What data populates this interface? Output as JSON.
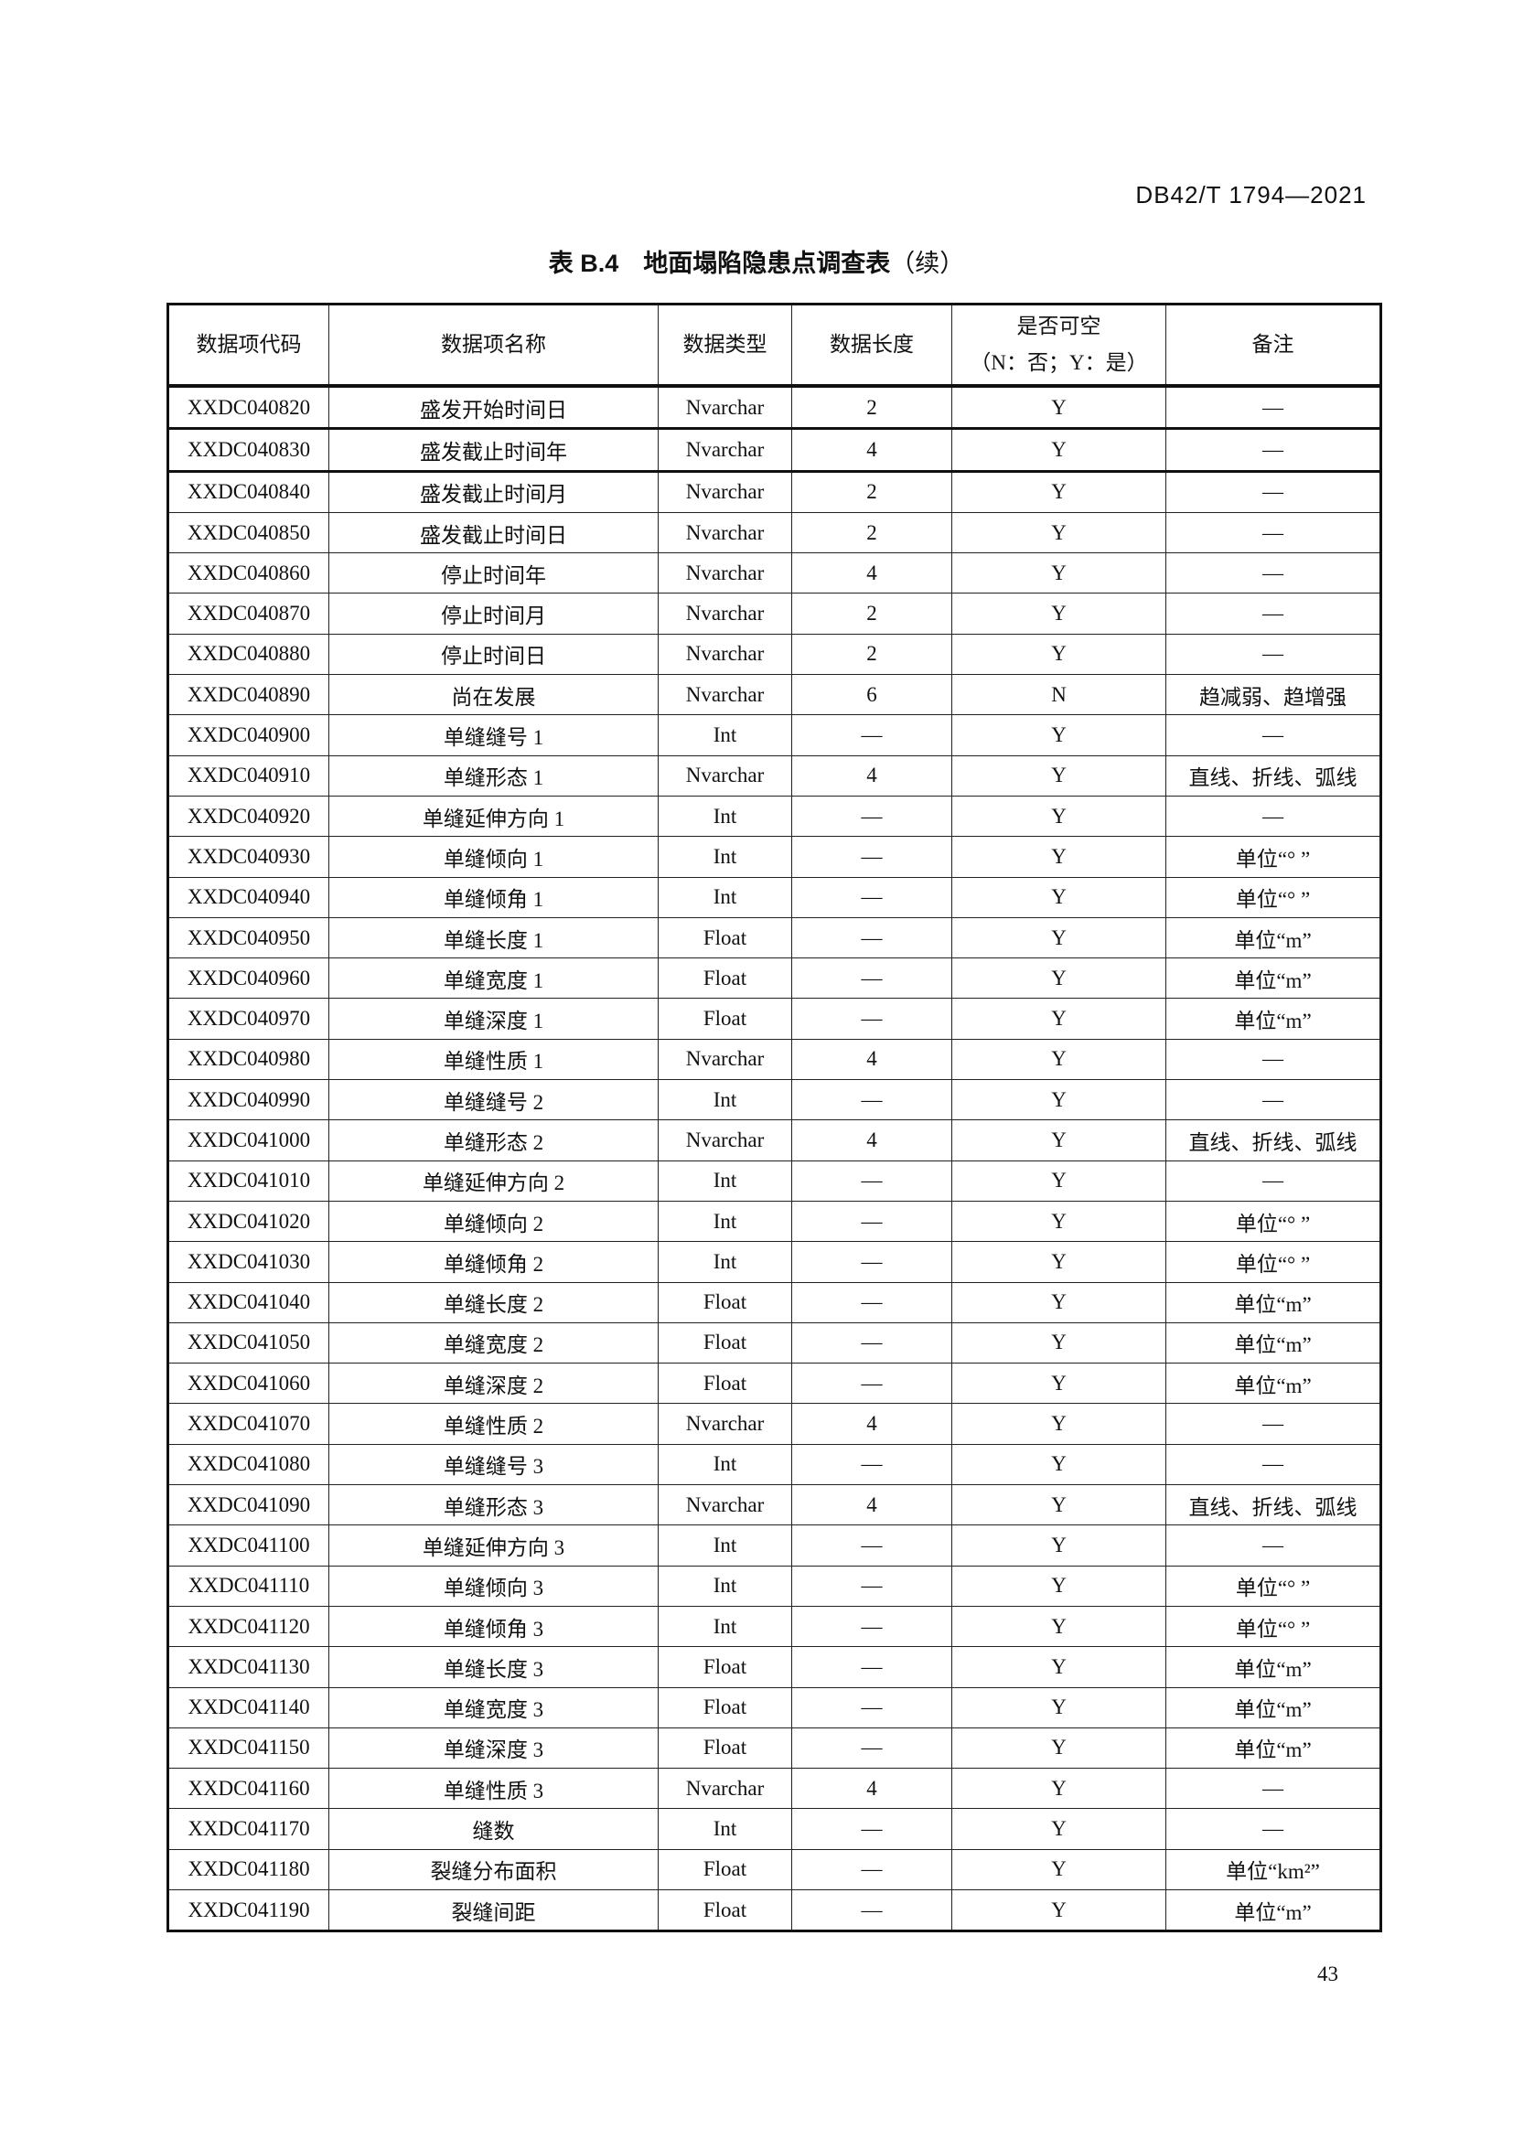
{
  "header": {
    "standard_no": "DB42/T 1794—2021"
  },
  "title": {
    "text": "表 B.4　地面塌陷隐患点调查表",
    "continued": "（续）"
  },
  "table": {
    "columns": [
      "数据项代码",
      "数据项名称",
      "数据类型",
      "数据长度",
      "是否可空",
      "备注"
    ],
    "nullable_note": "（N：否；Y：是）",
    "rows": [
      [
        "XXDC040820",
        "盛发开始时间日",
        "Nvarchar",
        "2",
        "Y",
        "—"
      ],
      [
        "XXDC040830",
        "盛发截止时间年",
        "Nvarchar",
        "4",
        "Y",
        "—"
      ],
      [
        "XXDC040840",
        "盛发截止时间月",
        "Nvarchar",
        "2",
        "Y",
        "—"
      ],
      [
        "XXDC040850",
        "盛发截止时间日",
        "Nvarchar",
        "2",
        "Y",
        "—"
      ],
      [
        "XXDC040860",
        "停止时间年",
        "Nvarchar",
        "4",
        "Y",
        "—"
      ],
      [
        "XXDC040870",
        "停止时间月",
        "Nvarchar",
        "2",
        "Y",
        "—"
      ],
      [
        "XXDC040880",
        "停止时间日",
        "Nvarchar",
        "2",
        "Y",
        "—"
      ],
      [
        "XXDC040890",
        "尚在发展",
        "Nvarchar",
        "6",
        "N",
        "趋减弱、趋增强"
      ],
      [
        "XXDC040900",
        "单缝缝号 1",
        "Int",
        "—",
        "Y",
        "—"
      ],
      [
        "XXDC040910",
        "单缝形态 1",
        "Nvarchar",
        "4",
        "Y",
        "直线、折线、弧线"
      ],
      [
        "XXDC040920",
        "单缝延伸方向 1",
        "Int",
        "—",
        "Y",
        "—"
      ],
      [
        "XXDC040930",
        "单缝倾向 1",
        "Int",
        "—",
        "Y",
        "单位“° ”"
      ],
      [
        "XXDC040940",
        "单缝倾角 1",
        "Int",
        "—",
        "Y",
        "单位“° ”"
      ],
      [
        "XXDC040950",
        "单缝长度 1",
        "Float",
        "—",
        "Y",
        "单位“m”"
      ],
      [
        "XXDC040960",
        "单缝宽度 1",
        "Float",
        "—",
        "Y",
        "单位“m”"
      ],
      [
        "XXDC040970",
        "单缝深度 1",
        "Float",
        "—",
        "Y",
        "单位“m”"
      ],
      [
        "XXDC040980",
        "单缝性质 1",
        "Nvarchar",
        "4",
        "Y",
        "—"
      ],
      [
        "XXDC040990",
        "单缝缝号 2",
        "Int",
        "—",
        "Y",
        "—"
      ],
      [
        "XXDC041000",
        "单缝形态 2",
        "Nvarchar",
        "4",
        "Y",
        "直线、折线、弧线"
      ],
      [
        "XXDC041010",
        "单缝延伸方向 2",
        "Int",
        "—",
        "Y",
        "—"
      ],
      [
        "XXDC041020",
        "单缝倾向 2",
        "Int",
        "—",
        "Y",
        "单位“° ”"
      ],
      [
        "XXDC041030",
        "单缝倾角 2",
        "Int",
        "—",
        "Y",
        "单位“° ”"
      ],
      [
        "XXDC041040",
        "单缝长度 2",
        "Float",
        "—",
        "Y",
        "单位“m”"
      ],
      [
        "XXDC041050",
        "单缝宽度 2",
        "Float",
        "—",
        "Y",
        "单位“m”"
      ],
      [
        "XXDC041060",
        "单缝深度 2",
        "Float",
        "—",
        "Y",
        "单位“m”"
      ],
      [
        "XXDC041070",
        "单缝性质 2",
        "Nvarchar",
        "4",
        "Y",
        "—"
      ],
      [
        "XXDC041080",
        "单缝缝号 3",
        "Int",
        "—",
        "Y",
        "—"
      ],
      [
        "XXDC041090",
        "单缝形态 3",
        "Nvarchar",
        "4",
        "Y",
        "直线、折线、弧线"
      ],
      [
        "XXDC041100",
        "单缝延伸方向 3",
        "Int",
        "—",
        "Y",
        "—"
      ],
      [
        "XXDC041110",
        "单缝倾向 3",
        "Int",
        "—",
        "Y",
        "单位“° ”"
      ],
      [
        "XXDC041120",
        "单缝倾角 3",
        "Int",
        "—",
        "Y",
        "单位“° ”"
      ],
      [
        "XXDC041130",
        "单缝长度 3",
        "Float",
        "—",
        "Y",
        "单位“m”"
      ],
      [
        "XXDC041140",
        "单缝宽度 3",
        "Float",
        "—",
        "Y",
        "单位“m”"
      ],
      [
        "XXDC041150",
        "单缝深度 3",
        "Float",
        "—",
        "Y",
        "单位“m”"
      ],
      [
        "XXDC041160",
        "单缝性质 3",
        "Nvarchar",
        "4",
        "Y",
        "—"
      ],
      [
        "XXDC041170",
        "缝数",
        "Int",
        "—",
        "Y",
        "—"
      ],
      [
        "XXDC041180",
        "裂缝分布面积",
        "Float",
        "—",
        "Y",
        "单位“km²”"
      ],
      [
        "XXDC041190",
        "裂缝间距",
        "Float",
        "—",
        "Y",
        "单位“m”"
      ]
    ]
  },
  "footer": {
    "page_number": "43"
  }
}
